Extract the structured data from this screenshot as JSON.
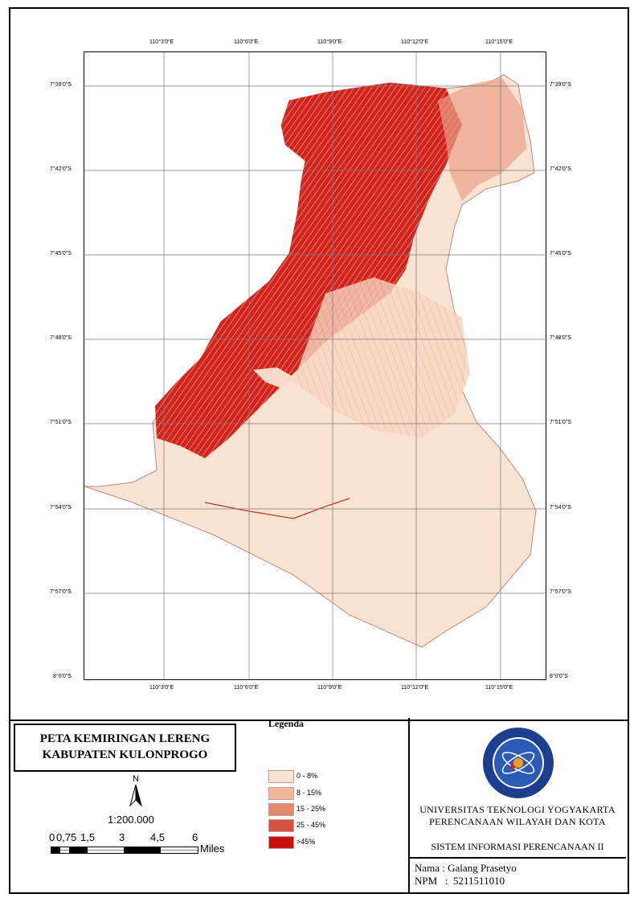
{
  "map": {
    "top_lon_labels": [
      "110°3'0\"E",
      "110°6'0\"E",
      "110°9'0\"E",
      "110°12'0\"E",
      "110°15'0\"E"
    ],
    "bottom_lon_labels": [
      "110°3'0\"E",
      "110°6'0\"E",
      "110°9'0\"E",
      "110°12'0\"E",
      "110°15'0\"E"
    ],
    "left_lat_labels": [
      "7°39'0\"S",
      "7°42'0\"S",
      "7°45'0\"S",
      "7°48'0\"S",
      "7°51'0\"S",
      "7°54'0\"S",
      "7°57'0\"S",
      "8°0'0\"S"
    ],
    "right_lat_labels": [
      "7°39'0\"S",
      "7°42'0\"S",
      "7°45'0\"S",
      "7°48'0\"S",
      "7°51'0\"S",
      "7°54'0\"S",
      "7°57'0\"S",
      "8°0'0\"S"
    ],
    "colors": {
      "c1": "#fbe3d1",
      "c2": "#f2b79a",
      "c3": "#e08a6e",
      "c4": "#d5533f",
      "c5": "#c80f0f"
    }
  },
  "title": {
    "line1": "PETA KEMIRINGAN LERENG",
    "line2": "KABUPATEN KULONPROGO"
  },
  "legend": {
    "heading": "Legenda",
    "items": [
      {
        "label": "0 - 8%",
        "color": "#fbe3d1"
      },
      {
        "label": "8 - 15%",
        "color": "#f2b79a"
      },
      {
        "label": "15 - 25%",
        "color": "#e08a6e"
      },
      {
        "label": "25 - 45%",
        "color": "#d5533f"
      },
      {
        "label": ">45%",
        "color": "#c80f0f"
      }
    ]
  },
  "north": {
    "letter": "N"
  },
  "scale": {
    "ratio": "1:200.000",
    "ticks": [
      "0",
      "0,75",
      "1,5",
      "3",
      "4,5",
      "6"
    ],
    "unit": "Miles"
  },
  "institution": {
    "line1": "UNIVERSITAS TEKNOLOGI YOGYAKARTA",
    "line2": "PERENCANAAN WILAYAH DAN KOTA",
    "course": "SISTEM INFORMASI PERENCANAAN II"
  },
  "author": {
    "nama": "Nama : Galang Prasetyo",
    "npm": "NPM   :  5211511010"
  }
}
